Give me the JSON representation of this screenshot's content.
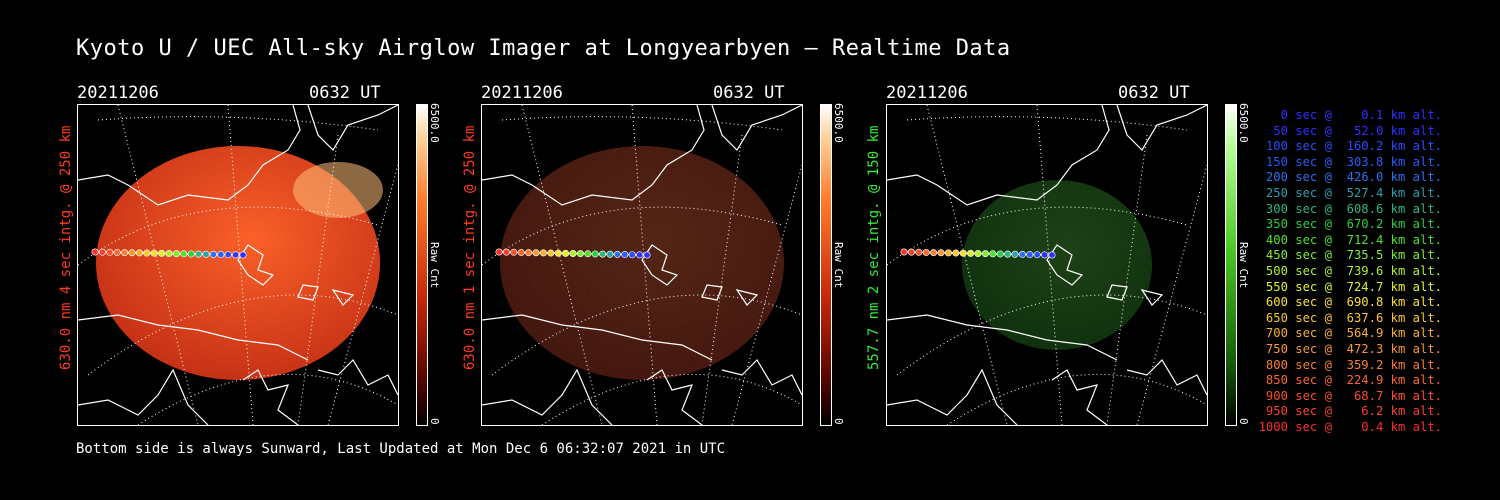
{
  "title": "Kyoto U / UEC All-sky Airglow Imager at Longyearbyen — Realtime Data",
  "footer": "Bottom side is always Sunward, Last Updated at Mon Dec  6 06:32:07 2021 in UTC",
  "colors": {
    "red_channel": "#ff3b1f",
    "green_channel": "#33ee33"
  },
  "panels": [
    {
      "date": "20211206",
      "time": "0632 UT",
      "ylabel": "630.0 nm 4 sec intg. @ 250 km",
      "label_color": "#ff3b1f",
      "cbar_max": "6500.0",
      "cbar_unit": "Raw Cnt",
      "cbar_min": "0",
      "scheme": "red",
      "intensity": 1.0
    },
    {
      "date": "20211206",
      "time": "0632 UT",
      "ylabel": "630.0 nm 1 sec intg. @ 250 km",
      "label_color": "#ff3b1f",
      "cbar_max": "6500.0",
      "cbar_unit": "Raw Cnt",
      "cbar_min": "0",
      "scheme": "red",
      "intensity": 0.3
    },
    {
      "date": "20211206",
      "time": "0632 UT",
      "ylabel": "557.7 nm 2 sec intg. @ 150 km",
      "label_color": "#33ee33",
      "cbar_max": "6500.0",
      "cbar_unit": "Raw Cnt",
      "cbar_min": "0",
      "scheme": "green",
      "intensity": 0.4
    }
  ],
  "legend": [
    {
      "text": "   0 sec @    0.1 km alt.",
      "color": "#3030ff"
    },
    {
      "text": "  50 sec @   52.0 km alt.",
      "color": "#3030ff"
    },
    {
      "text": " 100 sec @  160.2 km alt.",
      "color": "#2a4cff"
    },
    {
      "text": " 150 sec @  303.8 km alt.",
      "color": "#2a5cff"
    },
    {
      "text": " 200 sec @  426.0 km alt.",
      "color": "#2a72ef"
    },
    {
      "text": " 250 sec @  527.4 km alt.",
      "color": "#2a9fb0"
    },
    {
      "text": " 300 sec @  608.6 km alt.",
      "color": "#2ab880"
    },
    {
      "text": " 350 sec @  670.2 km alt.",
      "color": "#2ad040"
    },
    {
      "text": " 400 sec @  712.4 km alt.",
      "color": "#50e030"
    },
    {
      "text": " 450 sec @  735.5 km alt.",
      "color": "#80ee30"
    },
    {
      "text": " 500 sec @  739.6 km alt.",
      "color": "#b0f030"
    },
    {
      "text": " 550 sec @  724.7 km alt.",
      "color": "#e0f030"
    },
    {
      "text": " 600 sec @  690.8 km alt.",
      "color": "#f8e030"
    },
    {
      "text": " 650 sec @  637.6 km alt.",
      "color": "#f8c830"
    },
    {
      "text": " 700 sec @  564.9 km alt.",
      "color": "#f8b030"
    },
    {
      "text": " 750 sec @  472.3 km alt.",
      "color": "#f89830"
    },
    {
      "text": " 800 sec @  359.2 km alt.",
      "color": "#f88030"
    },
    {
      "text": " 850 sec @  224.9 km alt.",
      "color": "#f86830"
    },
    {
      "text": " 900 sec @   68.7 km alt.",
      "color": "#f85030"
    },
    {
      "text": " 950 sec @    6.2 km alt.",
      "color": "#f84030"
    },
    {
      "text": "1000 sec @    0.4 km alt.",
      "color": "#f83030"
    }
  ]
}
